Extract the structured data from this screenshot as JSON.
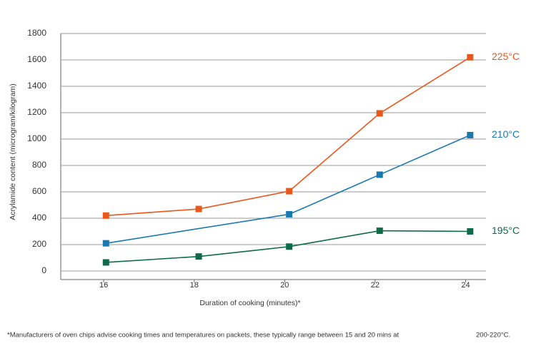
{
  "chart_data": {
    "type": "line",
    "xlabel": "Duration of cooking (minutes)*",
    "ylabel": "Acrylamide content (microgram/kilogram)",
    "xlim": [
      15.05,
      24.45
    ],
    "xticks": [
      16,
      18,
      20,
      22,
      24
    ],
    "ylim": [
      0,
      1800
    ],
    "yticks": [
      0,
      200,
      400,
      600,
      800,
      1000,
      1200,
      1400,
      1600,
      1800
    ],
    "grid": true,
    "series": [
      {
        "name": "225°C",
        "color": "#e8581c",
        "x": [
          16.05,
          18.1,
          20.1,
          22.1,
          24.1
        ],
        "values": [
          420,
          470,
          605,
          1195,
          1620
        ]
      },
      {
        "name": "210°C",
        "color": "#1a7ab0",
        "x": [
          16.05,
          20.1,
          22.1,
          24.1
        ],
        "values": [
          210,
          430,
          730,
          1030
        ]
      },
      {
        "name": "195°C",
        "color": "#0e6b4a",
        "x": [
          16.05,
          18.1,
          20.1,
          22.1,
          24.1
        ],
        "values": [
          65,
          110,
          185,
          305,
          300
        ]
      }
    ],
    "footnote": [
      "*Manufacturers of oven chips advise cooking times and temperatures on packets, these typically range between 15 and 20 mins at",
      "200-220°C."
    ]
  }
}
